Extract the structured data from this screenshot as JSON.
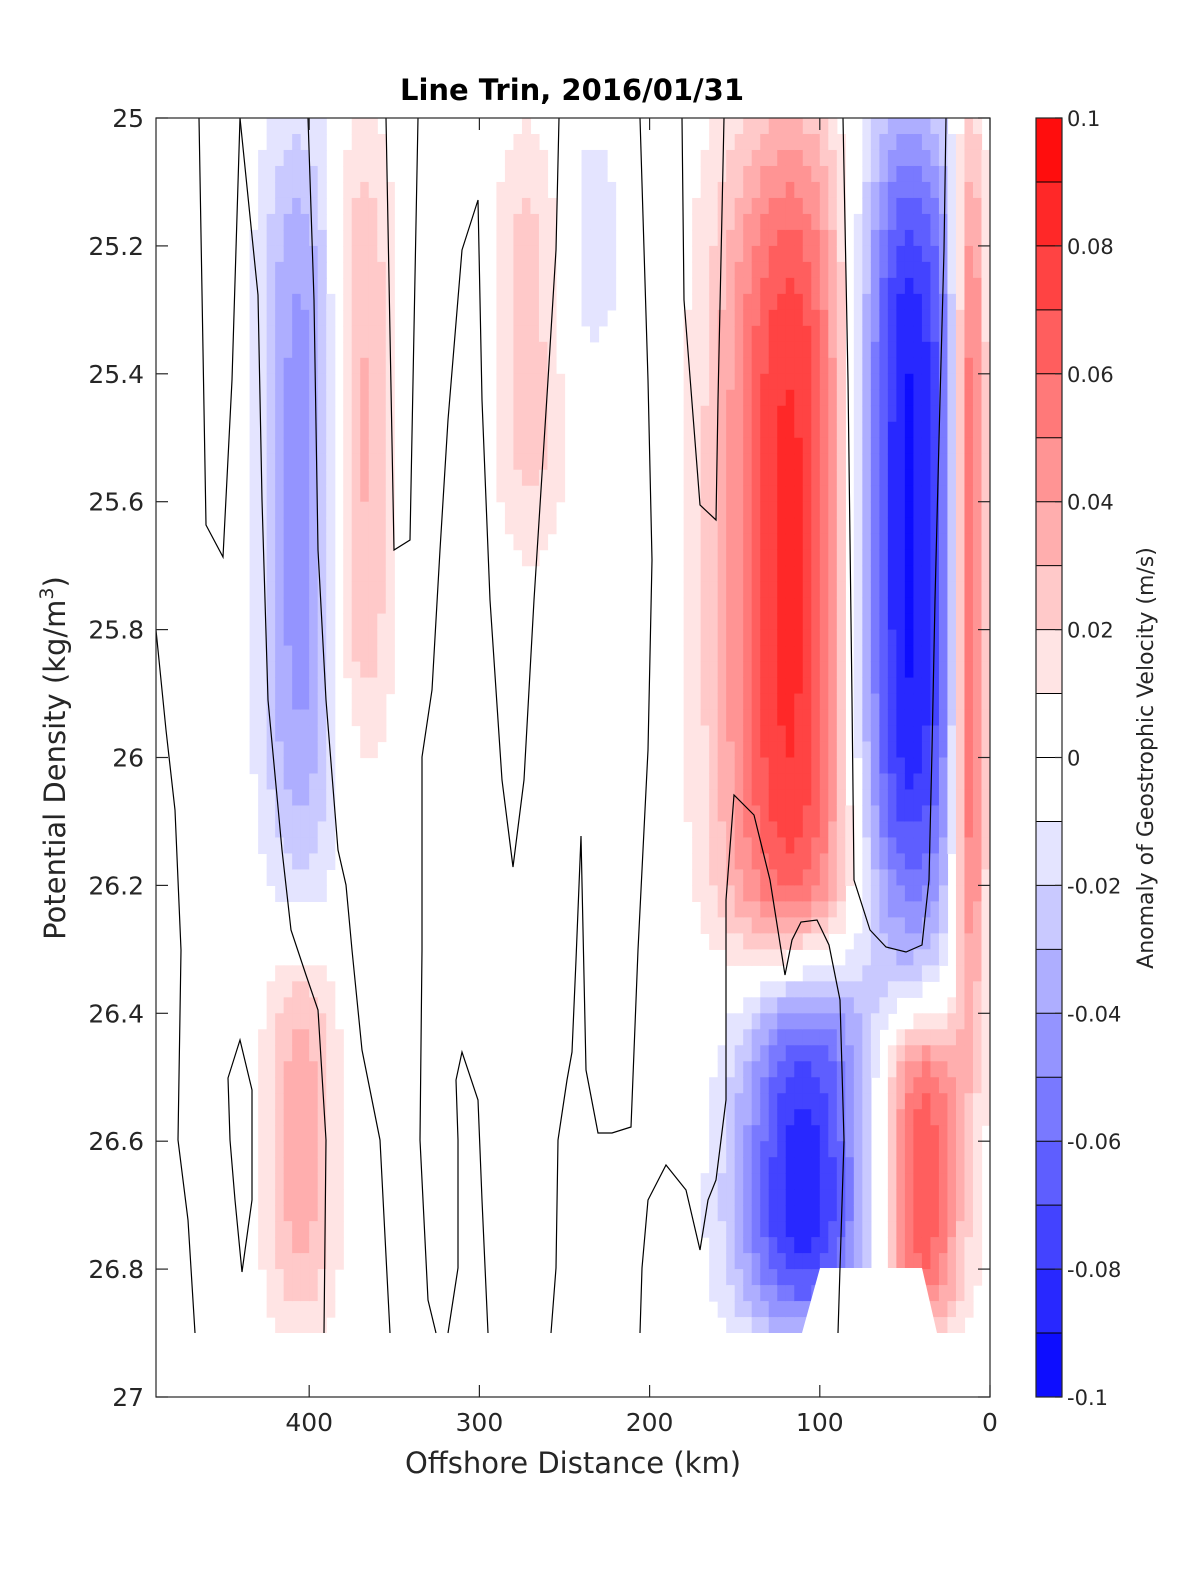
{
  "chart_data": {
    "type": "filled-contour",
    "title": "Line Trin, 2016/01/31",
    "xlabel": "Offshore Distance (km)",
    "ylabel": "Potential Density (kg/m",
    "ylabel_sup": "3",
    "ylabel_close": ")",
    "colorbar_label": "Anomaly of Geostrophic Velocity (m/s)",
    "xlim": [
      490,
      0
    ],
    "ylim": [
      25,
      27
    ],
    "y_reversed": true,
    "x_reversed": true,
    "xticks": [
      400,
      300,
      200,
      100,
      0
    ],
    "xtick_labels": [
      "400",
      "300",
      "200",
      "100",
      "0"
    ],
    "yticks": [
      25,
      25.2,
      25.4,
      25.6,
      25.8,
      26,
      26.2,
      26.4,
      26.6,
      26.8,
      27
    ],
    "ytick_labels": [
      "25",
      "25.2",
      "25.4",
      "25.6",
      "25.8",
      "26",
      "26.2",
      "26.4",
      "26.6",
      "26.8",
      "27"
    ],
    "colorbar": {
      "limits": [
        -0.1,
        0.1
      ],
      "levels": 20,
      "ticks": [
        0.1,
        0.08,
        0.06,
        0.04,
        0.02,
        0,
        -0.02,
        -0.04,
        -0.06,
        -0.08,
        -0.1
      ],
      "tick_labels": [
        "0.1",
        "0.08",
        "0.06",
        "0.04",
        "0.02",
        "0",
        "-0.02",
        "-0.04",
        "-0.06",
        "-0.08",
        "-0.1"
      ],
      "colormap": "blue-white-red",
      "negative_color": "#0000ff",
      "positive_color": "#ff0000"
    },
    "zero_contour_color": "#000000",
    "data_floor_density": 26.9,
    "features": [
      {
        "name": "jet-positive",
        "x_center": 115,
        "x_halfwidth": 50,
        "y_top": 25.0,
        "y_bottom": 26.4,
        "peak": 0.085
      },
      {
        "name": "jet-negative",
        "x_center": 50,
        "x_halfwidth": 40,
        "y_top": 25.0,
        "y_bottom": 26.3,
        "peak": -0.1
      },
      {
        "name": "coastal-positive",
        "x_center": 12,
        "x_halfwidth": 12,
        "y_top": 25.0,
        "y_bottom": 26.4,
        "peak": 0.085
      },
      {
        "name": "offshore-negative",
        "x_center": 405,
        "x_halfwidth": 28,
        "y_top": 25.0,
        "y_bottom": 26.2,
        "peak": -0.045
      },
      {
        "name": "offshore-positive",
        "x_center": 370,
        "x_halfwidth": 22,
        "y_top": 25.0,
        "y_bottom": 26.0,
        "peak": 0.035
      },
      {
        "name": "mid-positive",
        "x_center": 270,
        "x_halfwidth": 25,
        "y_top": 25.0,
        "y_bottom": 25.7,
        "peak": 0.025
      },
      {
        "name": "mid-negative",
        "x_center": 235,
        "x_halfwidth": 25,
        "y_top": 25.0,
        "y_bottom": 25.4,
        "peak": -0.015
      },
      {
        "name": "deep-negative",
        "x_center": 110,
        "x_halfwidth": 45,
        "y_top": 26.3,
        "y_bottom": 26.9,
        "peak": -0.09
      },
      {
        "name": "deep-positive",
        "x_center": 40,
        "x_halfwidth": 28,
        "y_top": 26.4,
        "y_bottom": 26.9,
        "peak": 0.07
      },
      {
        "name": "deep-positive-offshore",
        "x_center": 405,
        "x_halfwidth": 25,
        "y_top": 26.3,
        "y_bottom": 26.9,
        "peak": 0.035
      }
    ]
  }
}
